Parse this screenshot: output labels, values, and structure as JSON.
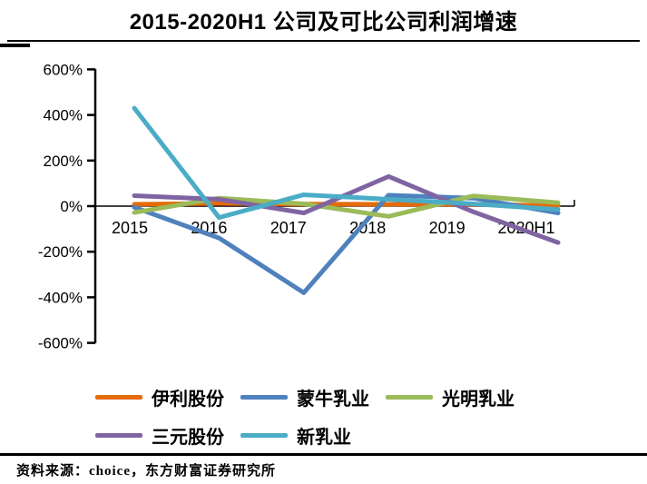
{
  "title": "2015-2020H1 公司及可比公司利润增速",
  "source_note": "资料来源：choice，东方财富证券研究所",
  "chart_data": {
    "type": "line",
    "title": "2015-2020H1 公司及可比公司利润增速",
    "categories": [
      "2015",
      "2016",
      "2017",
      "2018",
      "2019",
      "2020H1"
    ],
    "value_unit": "%",
    "ylim": [
      -600,
      600
    ],
    "yticks": [
      600,
      400,
      200,
      0,
      -200,
      -400,
      -600
    ],
    "ytick_labels": [
      "600%",
      "400%",
      "200%",
      "0%",
      "-200%",
      "-400%",
      "-600%"
    ],
    "grid": false,
    "legend_position": "bottom",
    "series": [
      {
        "name": "伊利股份",
        "color": "#E36C09",
        "values": [
          8,
          12,
          9,
          8,
          8,
          2
        ]
      },
      {
        "name": "蒙牛乳业",
        "color": "#4F81BD",
        "values": [
          -5,
          -140,
          -380,
          48,
          35,
          -30
        ]
      },
      {
        "name": "光明乳业",
        "color": "#9BBB59",
        "values": [
          -28,
          35,
          10,
          -45,
          45,
          15
        ]
      },
      {
        "name": "三元股份",
        "color": "#8064A2",
        "values": [
          46,
          30,
          -30,
          130,
          -25,
          -160
        ]
      },
      {
        "name": "新乳业",
        "color": "#4BACC6",
        "values": [
          430,
          -50,
          50,
          30,
          10,
          -15
        ]
      }
    ]
  }
}
